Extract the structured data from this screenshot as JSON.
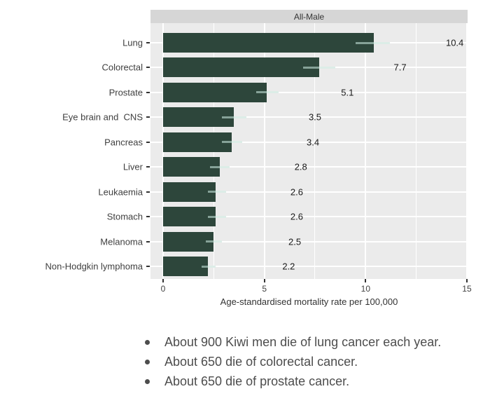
{
  "chart_data": {
    "type": "bar",
    "orientation": "horizontal",
    "facet_title": "All-Male",
    "xlabel": "Age-standardised mortality rate per 100,000",
    "xlim": [
      0,
      15
    ],
    "xticks": [
      0,
      5,
      10,
      15
    ],
    "xminor_ticks": [
      2.5,
      7.5,
      12.5
    ],
    "grid": "on",
    "legend_position": "none",
    "categories": [
      "Lung",
      "Colorectal",
      "Prostate",
      "Eye brain and  CNS",
      "Pancreas",
      "Liver",
      "Leukaemia",
      "Stomach",
      "Melanoma",
      "Non-Hodgkin lymphoma"
    ],
    "values": [
      10.4,
      7.7,
      5.1,
      3.5,
      3.4,
      2.8,
      2.6,
      2.6,
      2.5,
      2.2
    ],
    "value_labels": [
      "10.4",
      "7.7",
      "5.1",
      "3.5",
      "3.4",
      "2.8",
      "2.6",
      "2.6",
      "2.5",
      "2.2"
    ],
    "ci_low": [
      9.5,
      6.9,
      4.6,
      2.9,
      2.9,
      2.3,
      2.2,
      2.2,
      2.1,
      1.9
    ],
    "ci_high": [
      11.2,
      8.5,
      5.7,
      4.1,
      3.9,
      3.3,
      3.1,
      3.1,
      2.9,
      2.6
    ],
    "colors": {
      "bar": "#2d463b",
      "errorbar_on_bar": "#86a298",
      "errorbar_off_bar": "#dcede7",
      "panel_bg": "#ebebeb",
      "strip_bg": "#d6d6d6",
      "gridline": "#ffffff",
      "axis_text": "#404040",
      "value_text": "#1a1a1a"
    }
  },
  "notes": {
    "items": [
      "About 900 Kiwi men die of lung cancer each year.",
      "About 650 die of colorectal cancer.",
      "About 650 die of prostate cancer."
    ]
  }
}
